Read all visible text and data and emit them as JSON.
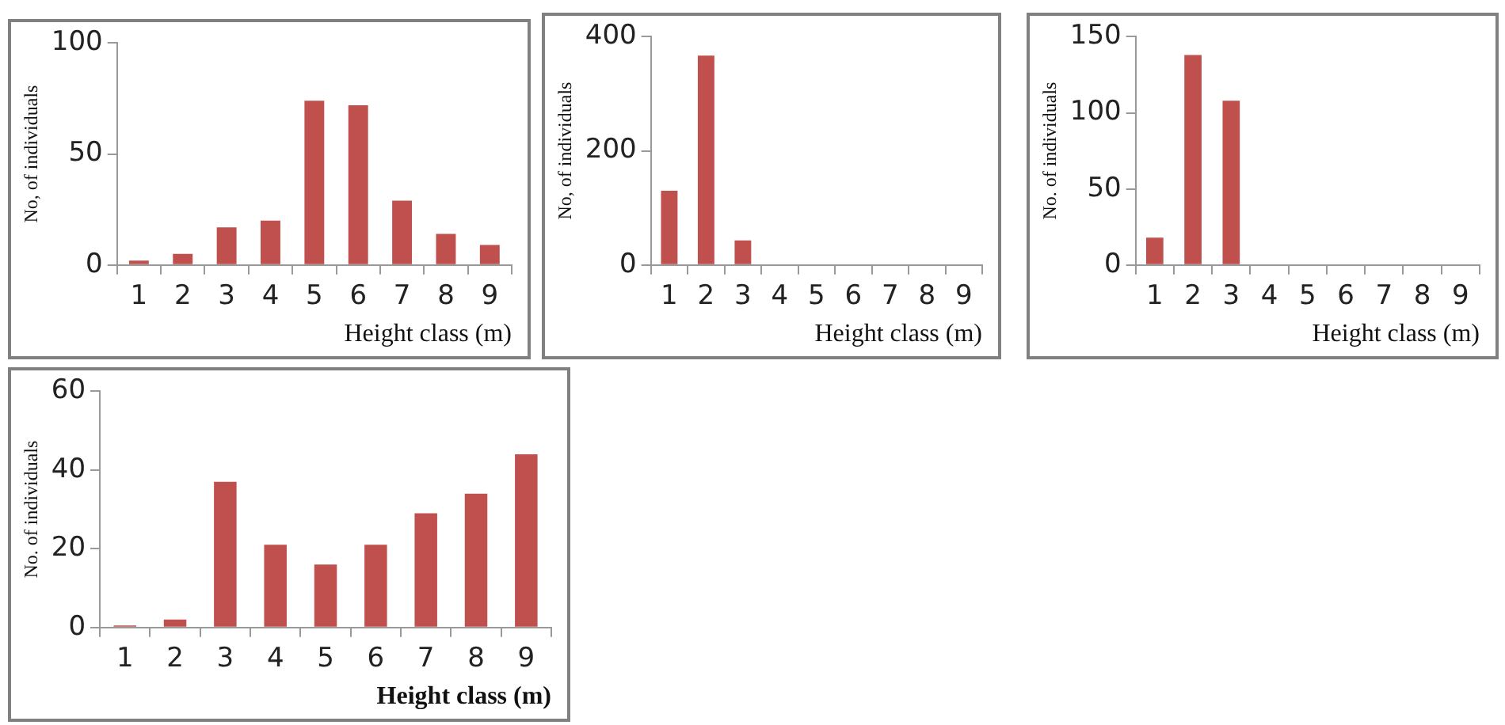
{
  "chart_data": [
    {
      "type": "bar",
      "categories": [
        "1",
        "2",
        "3",
        "4",
        "5",
        "6",
        "7",
        "8",
        "9"
      ],
      "values": [
        2,
        5,
        17,
        20,
        74,
        72,
        29,
        14,
        9
      ],
      "color": "#c0504d",
      "ylim": [
        0,
        100
      ],
      "yticks": [
        0,
        50,
        100
      ],
      "xlabel": "Height class (m)",
      "ylabel": "No, of individuals",
      "grid": false,
      "legend": false
    },
    {
      "type": "bar",
      "categories": [
        "1",
        "2",
        "3",
        "4",
        "5",
        "6",
        "7",
        "8",
        "9"
      ],
      "values": [
        130,
        367,
        43,
        0,
        0,
        0,
        0,
        0,
        0
      ],
      "color": "#c0504d",
      "ylim": [
        0,
        400
      ],
      "yticks": [
        0,
        200,
        400
      ],
      "xlabel": "Height class (m)",
      "ylabel": "No, of individuals",
      "grid": false,
      "legend": false
    },
    {
      "type": "bar",
      "categories": [
        "1",
        "2",
        "3",
        "4",
        "5",
        "6",
        "7",
        "8",
        "9"
      ],
      "values": [
        18,
        138,
        108,
        0,
        0,
        0,
        0,
        0,
        0
      ],
      "color": "#c0504d",
      "ylim": [
        0,
        150
      ],
      "yticks": [
        0,
        50,
        100,
        150
      ],
      "xlabel": "Height class (m)",
      "ylabel": "No. of individuals",
      "grid": false,
      "legend": false
    },
    {
      "type": "bar",
      "categories": [
        "1",
        "2",
        "3",
        "4",
        "5",
        "6",
        "7",
        "8",
        "9"
      ],
      "values": [
        0.5,
        2,
        37,
        21,
        16,
        21,
        29,
        34,
        44
      ],
      "color": "#c0504d",
      "ylim": [
        0,
        60
      ],
      "yticks": [
        0,
        20,
        40,
        60
      ],
      "xlabel": "Height class (m)",
      "ylabel": "No. of individuals",
      "grid": false,
      "legend": false
    }
  ]
}
